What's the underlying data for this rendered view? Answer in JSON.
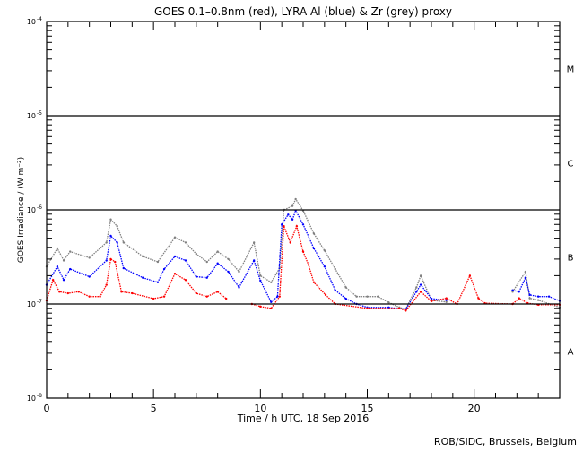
{
  "chart_data": {
    "type": "scatter",
    "title": "GOES 0.1–0.8nm (red), LYRA Al (blue) & Zr (grey) proxy",
    "xlabel": "Time / h UTC, 18 Sep 2016",
    "ylabel": "GOES Irradiance / (W m⁻²)",
    "xlim": [
      0,
      24
    ],
    "ylim": [
      1e-08,
      0.0001
    ],
    "yscale": "log",
    "x_ticks": [
      "0",
      "5",
      "10",
      "15",
      "20"
    ],
    "x_tick_values": [
      0,
      5,
      10,
      15,
      20
    ],
    "y_ticks": [
      {
        "base": "10",
        "exp": "-4",
        "value": 0.0001
      },
      {
        "base": "10",
        "exp": "-5",
        "value": 1e-05
      },
      {
        "base": "10",
        "exp": "-6",
        "value": 1e-06
      },
      {
        "base": "10",
        "exp": "-7",
        "value": 1e-07
      },
      {
        "base": "10",
        "exp": "-8",
        "value": 1e-08
      }
    ],
    "flare_classes": [
      {
        "label": "M",
        "value": 3.16e-05
      },
      {
        "label": "C",
        "value": 3.16e-06
      },
      {
        "label": "B",
        "value": 3.16e-07
      },
      {
        "label": "A",
        "value": 3.16e-08
      }
    ],
    "class_lines": [
      1e-05,
      1e-06,
      1e-07
    ],
    "series": [
      {
        "name": "LYRA Zr proxy",
        "color": "#808080",
        "x": [
          0,
          0.5,
          0.8,
          1.1,
          2,
          2.8,
          3.0,
          3.3,
          3.6,
          4.5,
          5.2,
          6,
          6.5,
          7,
          7.5,
          8,
          8.5,
          9,
          9.7,
          10,
          10.5,
          10.9,
          11.1,
          11.5,
          11.65,
          12,
          12.5,
          13,
          13.5,
          14,
          14.5,
          15,
          15.5,
          16,
          16.5,
          16.8,
          17.3,
          17.5,
          18,
          18.7,
          21.8,
          22.4,
          22.6,
          23,
          24
        ],
        "y": [
          2.5e-07,
          3.9e-07,
          2.9e-07,
          3.6e-07,
          3.1e-07,
          4.5e-07,
          7.9e-07,
          6.7e-07,
          4.5e-07,
          3.2e-07,
          2.8e-07,
          5.1e-07,
          4.5e-07,
          3.4e-07,
          2.8e-07,
          3.6e-07,
          3e-07,
          2.2e-07,
          4.5e-07,
          2e-07,
          1.7e-07,
          2.4e-07,
          1e-06,
          1.1e-06,
          1.3e-06,
          9.8e-07,
          5.6e-07,
          3.7e-07,
          2.35e-07,
          1.5e-07,
          1.2e-07,
          1.2e-07,
          1.2e-07,
          1.04e-07,
          9.2e-08,
          8.8e-08,
          1.5e-07,
          2e-07,
          1.1e-07,
          1.05e-07,
          1.35e-07,
          2.2e-07,
          1.15e-07,
          1.1e-07,
          9.2e-08
        ]
      },
      {
        "name": "LYRA Al proxy",
        "color": "#0000ff",
        "x": [
          0,
          0.5,
          0.8,
          1.1,
          2,
          2.8,
          3.0,
          3.3,
          3.6,
          4.5,
          5.2,
          5.5,
          6,
          6.5,
          7,
          7.5,
          8,
          8.5,
          9,
          9.7,
          10,
          10.5,
          10.8,
          11,
          11.3,
          11.5,
          11.65,
          12,
          12.5,
          13,
          13.5,
          14,
          14.5,
          15,
          16,
          16.8,
          17.3,
          17.5,
          18,
          18.7,
          21.8,
          22.1,
          22.4,
          22.6,
          23,
          23.5,
          24
        ],
        "y": [
          1.6e-07,
          2.5e-07,
          1.8e-07,
          2.35e-07,
          1.95e-07,
          2.9e-07,
          5.3e-07,
          4.5e-07,
          2.4e-07,
          1.9e-07,
          1.7e-07,
          2.35e-07,
          3.2e-07,
          2.9e-07,
          1.95e-07,
          1.9e-07,
          2.7e-07,
          2.2e-07,
          1.5e-07,
          2.9e-07,
          1.77e-07,
          1.05e-07,
          1.2e-07,
          7e-07,
          8.9e-07,
          7.9e-07,
          9.8e-07,
          7e-07,
          3.9e-07,
          2.5e-07,
          1.4e-07,
          1.14e-07,
          1e-07,
          9.2e-08,
          9.2e-08,
          8.8e-08,
          1.35e-07,
          1.6e-07,
          1.14e-07,
          1.1e-07,
          1.4e-07,
          1.35e-07,
          1.9e-07,
          1.25e-07,
          1.2e-07,
          1.2e-07,
          1.08e-07
        ]
      },
      {
        "name": "GOES 0.1-0.8nm",
        "color": "#ff0000",
        "x": [
          0,
          0.3,
          0.6,
          1,
          1.5,
          2,
          2.5,
          2.8,
          3.0,
          3.2,
          3.5,
          4,
          5,
          5.5,
          6,
          6.5,
          7,
          7.5,
          8,
          8.4,
          9.6,
          10,
          10.5,
          10.9,
          11.1,
          11.4,
          11.7,
          12,
          12.25,
          12.5,
          13.05,
          13.5,
          15,
          16.5,
          16.8,
          17.5,
          18,
          18.7,
          19.2,
          19.8,
          20.2,
          20.5,
          21.8,
          22.1,
          22.5,
          23,
          24
        ],
        "y": [
          1.09e-07,
          1.8e-07,
          1.35e-07,
          1.3e-07,
          1.35e-07,
          1.2e-07,
          1.2e-07,
          1.6e-07,
          3e-07,
          2.8e-07,
          1.35e-07,
          1.3e-07,
          1.14e-07,
          1.2e-07,
          2.1e-07,
          1.8e-07,
          1.3e-07,
          1.2e-07,
          1.35e-07,
          1.14e-07,
          1e-07,
          9.4e-08,
          9e-08,
          1.2e-07,
          6.7e-07,
          4.5e-07,
          6.7e-07,
          3.6e-07,
          2.6e-07,
          1.7e-07,
          1.25e-07,
          1e-07,
          9e-08,
          9e-08,
          8.5e-08,
          1.35e-07,
          1.07e-07,
          1.15e-07,
          1e-07,
          2e-07,
          1.15e-07,
          1.02e-07,
          1e-07,
          1.15e-07,
          1.02e-07,
          9.8e-08,
          9.8e-08
        ]
      }
    ],
    "gaps": {
      "GOES 0.1-0.8nm": [
        [
          8.4,
          9.6
        ]
      ],
      "LYRA Al proxy": [
        [
          18.7,
          21.8
        ]
      ],
      "LYRA Zr proxy": [
        [
          18.7,
          21.8
        ]
      ]
    },
    "grid": false,
    "legend": "none",
    "credit": "ROB/SIDC, Brussels, Belgium"
  }
}
